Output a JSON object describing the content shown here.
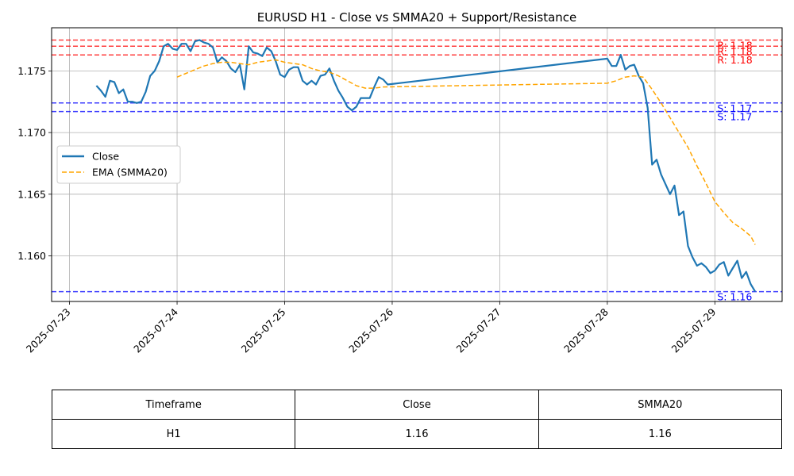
{
  "chart_data": {
    "type": "line",
    "title": "EURUSD H1 - Close vs SMMA20 + Support/Resistance",
    "xlabel": "",
    "ylabel": "",
    "xlim": [
      "2025-07-22 20:00",
      "2025-07-29 15:00"
    ],
    "ylim": [
      1.1563,
      1.1785
    ],
    "x_ticks": [
      "2025-07-23",
      "2025-07-24",
      "2025-07-25",
      "2025-07-26",
      "2025-07-27",
      "2025-07-28",
      "2025-07-29"
    ],
    "y_ticks": [
      1.16,
      1.165,
      1.17,
      1.175
    ],
    "y_tick_labels": [
      "1.160",
      "1.165",
      "1.170",
      "1.175"
    ],
    "grid": true,
    "legend_position": "center-left",
    "series": [
      {
        "name": "Close",
        "color": "#1f77b4",
        "style": "solid",
        "points": [
          [
            "2025-07-23 06:00",
            1.1738
          ],
          [
            "2025-07-23 07:00",
            1.1734
          ],
          [
            "2025-07-23 08:00",
            1.1729
          ],
          [
            "2025-07-23 09:00",
            1.1742
          ],
          [
            "2025-07-23 10:00",
            1.1741
          ],
          [
            "2025-07-23 11:00",
            1.1732
          ],
          [
            "2025-07-23 12:00",
            1.1735
          ],
          [
            "2025-07-23 13:00",
            1.1725
          ],
          [
            "2025-07-23 14:00",
            1.1725
          ],
          [
            "2025-07-23 15:00",
            1.1724
          ],
          [
            "2025-07-23 16:00",
            1.1725
          ],
          [
            "2025-07-23 17:00",
            1.1733
          ],
          [
            "2025-07-23 18:00",
            1.1746
          ],
          [
            "2025-07-23 19:00",
            1.175
          ],
          [
            "2025-07-23 20:00",
            1.1758
          ],
          [
            "2025-07-23 21:00",
            1.177
          ],
          [
            "2025-07-23 22:00",
            1.1772
          ],
          [
            "2025-07-23 23:00",
            1.1768
          ],
          [
            "2025-07-24 00:00",
            1.1767
          ],
          [
            "2025-07-24 01:00",
            1.1772
          ],
          [
            "2025-07-24 02:00",
            1.1772
          ],
          [
            "2025-07-24 03:00",
            1.1766
          ],
          [
            "2025-07-24 04:00",
            1.1774
          ],
          [
            "2025-07-24 05:00",
            1.1775
          ],
          [
            "2025-07-24 06:00",
            1.1773
          ],
          [
            "2025-07-24 07:00",
            1.1772
          ],
          [
            "2025-07-24 08:00",
            1.1769
          ],
          [
            "2025-07-24 09:00",
            1.1757
          ],
          [
            "2025-07-24 10:00",
            1.1761
          ],
          [
            "2025-07-24 11:00",
            1.1758
          ],
          [
            "2025-07-24 12:00",
            1.1752
          ],
          [
            "2025-07-24 13:00",
            1.1749
          ],
          [
            "2025-07-24 14:00",
            1.1755
          ],
          [
            "2025-07-24 15:00",
            1.1735
          ],
          [
            "2025-07-24 16:00",
            1.177
          ],
          [
            "2025-07-24 17:00",
            1.1765
          ],
          [
            "2025-07-24 18:00",
            1.1764
          ],
          [
            "2025-07-24 19:00",
            1.1762
          ],
          [
            "2025-07-24 20:00",
            1.1769
          ],
          [
            "2025-07-24 21:00",
            1.1766
          ],
          [
            "2025-07-24 22:00",
            1.1758
          ],
          [
            "2025-07-24 23:00",
            1.1747
          ],
          [
            "2025-07-25 00:00",
            1.1745
          ],
          [
            "2025-07-25 01:00",
            1.1751
          ],
          [
            "2025-07-25 02:00",
            1.1753
          ],
          [
            "2025-07-25 03:00",
            1.1753
          ],
          [
            "2025-07-25 04:00",
            1.1742
          ],
          [
            "2025-07-25 05:00",
            1.1739
          ],
          [
            "2025-07-25 06:00",
            1.1742
          ],
          [
            "2025-07-25 07:00",
            1.1739
          ],
          [
            "2025-07-25 08:00",
            1.1746
          ],
          [
            "2025-07-25 09:00",
            1.1747
          ],
          [
            "2025-07-25 10:00",
            1.1752
          ],
          [
            "2025-07-25 11:00",
            1.1742
          ],
          [
            "2025-07-25 12:00",
            1.1734
          ],
          [
            "2025-07-25 13:00",
            1.1728
          ],
          [
            "2025-07-25 14:00",
            1.1721
          ],
          [
            "2025-07-25 15:00",
            1.1718
          ],
          [
            "2025-07-25 16:00",
            1.1721
          ],
          [
            "2025-07-25 17:00",
            1.1728
          ],
          [
            "2025-07-25 18:00",
            1.1728
          ],
          [
            "2025-07-25 19:00",
            1.1728
          ],
          [
            "2025-07-25 20:00",
            1.1737
          ],
          [
            "2025-07-25 21:00",
            1.1745
          ],
          [
            "2025-07-25 22:00",
            1.1743
          ],
          [
            "2025-07-25 23:00",
            1.1739
          ],
          [
            "2025-07-28 00:00",
            1.176
          ],
          [
            "2025-07-28 01:00",
            1.1754
          ],
          [
            "2025-07-28 02:00",
            1.1754
          ],
          [
            "2025-07-28 03:00",
            1.1763
          ],
          [
            "2025-07-28 04:00",
            1.1751
          ],
          [
            "2025-07-28 05:00",
            1.1754
          ],
          [
            "2025-07-28 06:00",
            1.1755
          ],
          [
            "2025-07-28 07:00",
            1.1746
          ],
          [
            "2025-07-28 08:00",
            1.174
          ],
          [
            "2025-07-28 09:00",
            1.172
          ],
          [
            "2025-07-28 10:00",
            1.1674
          ],
          [
            "2025-07-28 11:00",
            1.1678
          ],
          [
            "2025-07-28 12:00",
            1.1666
          ],
          [
            "2025-07-28 13:00",
            1.1658
          ],
          [
            "2025-07-28 14:00",
            1.165
          ],
          [
            "2025-07-28 15:00",
            1.1657
          ],
          [
            "2025-07-28 16:00",
            1.1633
          ],
          [
            "2025-07-28 17:00",
            1.1636
          ],
          [
            "2025-07-28 18:00",
            1.1608
          ],
          [
            "2025-07-28 19:00",
            1.1599
          ],
          [
            "2025-07-28 20:00",
            1.1592
          ],
          [
            "2025-07-28 21:00",
            1.1594
          ],
          [
            "2025-07-28 22:00",
            1.1591
          ],
          [
            "2025-07-28 23:00",
            1.1586
          ],
          [
            "2025-07-29 00:00",
            1.1588
          ],
          [
            "2025-07-29 01:00",
            1.1593
          ],
          [
            "2025-07-29 02:00",
            1.1595
          ],
          [
            "2025-07-29 03:00",
            1.1584
          ],
          [
            "2025-07-29 04:00",
            1.159
          ],
          [
            "2025-07-29 05:00",
            1.1596
          ],
          [
            "2025-07-29 06:00",
            1.1582
          ],
          [
            "2025-07-29 07:00",
            1.1587
          ],
          [
            "2025-07-29 08:00",
            1.1577
          ],
          [
            "2025-07-29 09:00",
            1.1571
          ]
        ]
      },
      {
        "name": "EMA (SMMA20)",
        "color": "#ffa500",
        "style": "dashed",
        "points": [
          [
            "2025-07-24 00:00",
            1.1745
          ],
          [
            "2025-07-24 02:00",
            1.1748
          ],
          [
            "2025-07-24 04:00",
            1.1751
          ],
          [
            "2025-07-24 06:00",
            1.1754
          ],
          [
            "2025-07-24 08:00",
            1.1756
          ],
          [
            "2025-07-24 10:00",
            1.1757
          ],
          [
            "2025-07-24 12:00",
            1.1757
          ],
          [
            "2025-07-24 14:00",
            1.1756
          ],
          [
            "2025-07-24 16:00",
            1.1755
          ],
          [
            "2025-07-24 18:00",
            1.1757
          ],
          [
            "2025-07-24 20:00",
            1.1758
          ],
          [
            "2025-07-24 22:00",
            1.1759
          ],
          [
            "2025-07-25 00:00",
            1.1757
          ],
          [
            "2025-07-25 02:00",
            1.1756
          ],
          [
            "2025-07-25 04:00",
            1.1755
          ],
          [
            "2025-07-25 06:00",
            1.1752
          ],
          [
            "2025-07-25 08:00",
            1.175
          ],
          [
            "2025-07-25 10:00",
            1.1749
          ],
          [
            "2025-07-25 12:00",
            1.1746
          ],
          [
            "2025-07-25 14:00",
            1.1742
          ],
          [
            "2025-07-25 16:00",
            1.1738
          ],
          [
            "2025-07-25 18:00",
            1.1736
          ],
          [
            "2025-07-25 20:00",
            1.1736
          ],
          [
            "2025-07-25 22:00",
            1.1737
          ],
          [
            "2025-07-28 00:00",
            1.174
          ],
          [
            "2025-07-28 02:00",
            1.1742
          ],
          [
            "2025-07-28 04:00",
            1.1745
          ],
          [
            "2025-07-28 06:00",
            1.1746
          ],
          [
            "2025-07-28 08:00",
            1.1745
          ],
          [
            "2025-07-28 10:00",
            1.1735
          ],
          [
            "2025-07-28 12:00",
            1.1724
          ],
          [
            "2025-07-28 14:00",
            1.1712
          ],
          [
            "2025-07-28 16:00",
            1.17
          ],
          [
            "2025-07-28 18:00",
            1.1688
          ],
          [
            "2025-07-28 20:00",
            1.1673
          ],
          [
            "2025-07-28 22:00",
            1.1659
          ],
          [
            "2025-07-29 00:00",
            1.1644
          ],
          [
            "2025-07-29 02:00",
            1.1635
          ],
          [
            "2025-07-29 04:00",
            1.1627
          ],
          [
            "2025-07-29 06:00",
            1.1622
          ],
          [
            "2025-07-29 08:00",
            1.1616
          ],
          [
            "2025-07-29 09:00",
            1.1609
          ]
        ]
      }
    ],
    "horizontal_lines": [
      {
        "kind": "resistance",
        "value": 1.1775,
        "label": "R: 1.18",
        "color": "#ff0000"
      },
      {
        "kind": "resistance",
        "value": 1.177,
        "label": "R: 1.18",
        "color": "#ff0000"
      },
      {
        "kind": "resistance",
        "value": 1.1763,
        "label": "R: 1.18",
        "color": "#ff0000"
      },
      {
        "kind": "support",
        "value": 1.1724,
        "label": "S: 1.17",
        "color": "#0000ff"
      },
      {
        "kind": "support",
        "value": 1.1717,
        "label": "S: 1.17",
        "color": "#0000ff"
      },
      {
        "kind": "support",
        "value": 1.1571,
        "label": "S: 1.16",
        "color": "#0000ff"
      }
    ]
  },
  "table": {
    "headers": [
      "Timeframe",
      "Close",
      "SMMA20"
    ],
    "row": [
      "H1",
      "1.16",
      "1.16"
    ]
  }
}
